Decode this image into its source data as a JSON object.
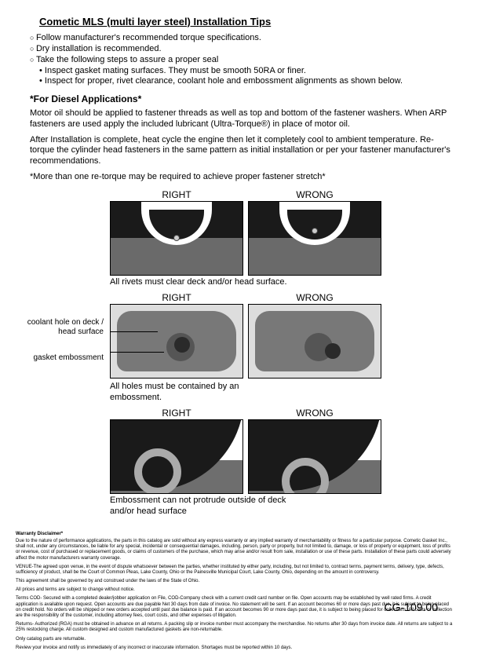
{
  "title": "Cometic MLS (multi layer steel) Installation Tips",
  "bullets": {
    "b1": "Follow manufacturer's recommended torque specifications.",
    "b2": "Dry installation is recommended.",
    "b3": "Take the following steps to assure a proper seal",
    "s1": "Inspect gasket mating surfaces.  They must be smooth 50RA or finer.",
    "s2": "Inspect for proper, rivet clearance, coolant hole and embossment alignments as shown below."
  },
  "diesel": {
    "heading": "*For Diesel Applications*",
    "p1": "Motor oil should be applied to fastener threads as well as top and bottom of the fastener washers. When ARP fasteners are used apply the included lubricant (Ultra-Torque®) in place of motor oil.",
    "p2": "After Installation is complete, heat cycle the engine then let it completely cool to ambient temperature. Re-torque the cylinder head fasteners in the same pattern as initial installation or per your fastener manufacturer's recommendations.",
    "p3": "*More than one re-torque may be required to achieve proper fastener stretch*"
  },
  "diagram": {
    "right": "RIGHT",
    "wrong": "WRONG",
    "cap1": "All rivets must clear deck and/or head surface.",
    "cap2": "All holes must be contained by an embossment.",
    "cap3": "Embossment can not protrude outside of deck and/or head surface",
    "lbl_coolant": "coolant hole on deck / head surface",
    "lbl_emboss": "gasket embossment"
  },
  "disclaimer": {
    "h": "Warranty Disclaimer*",
    "p1": "Due to the nature of performance applications, the parts in this catalog are sold without any express warranty or any implied warranty of merchantability or fitness for a particular purpose. Cometic Gasket Inc., shall not, under any circumstances, be liable for any special, incidental or consequential damages, including, person, party or property, but not limited to, damage, or loss of property or equipment, loss of profits or revenue, cost of purchased or replacement goods, or claims of customers of the purchase, which may arise and/or result from sale, installation or use of these parts. Installation of these parts could adversely affect the motor manufacturers warranty coverage.",
    "p2": "VENUE-The agreed upon venue, in the event of dispute whatsoever between the parties, whether instituted by either party, including, but not limited to, contract terms, payment terms, delivery, type, defects, sufficiency of product, shall be the Court of Common Pleas, Lake County, Ohio or the Painesville Municipal Court, Lake County, Ohio, depending on the amount in controversy.",
    "p3": "This agreement shall be governed by and construed under the laws of the State of Ohio.",
    "p4": "All prices and terms are subject to change without notice.",
    "p5": "Terms COD- Secured with a completed dealer/jobber application on File, COD-Company check with a current credit card number on file. Open accounts may be established by well rated firms. A credit application is available upon request. Open accounts are due payable Net 30 days from date of invoice. No statement will be sent. If an account becomes 60 or more days past due, it is subject to being placed on credit hold. No orders will be shipped or new orders accepted until past due balance is paid. If an account becomes 90 or more days past due, it is subject to being placed for collections. All costs of collection are the responsibility of the customer, including attorney fees, court costs, and other expenses of litigation.",
    "p6": "Returns- Authorized (RGA) must be obtained in advance on all returns. A packing slip or invoice number must accompany the merchandise. No returns after 30 days from invoice date. All returns are subject to a 25% restocking charge. All custom designed and custom manufactured gaskets are non-returnable.",
    "p7": "Only catalog parts are returnable.",
    "p8": "Review your invoice and notify us immediately of any incorrect or inaccurate information. Shortages must be reported within 10 days."
  },
  "page": "CG-109.00"
}
